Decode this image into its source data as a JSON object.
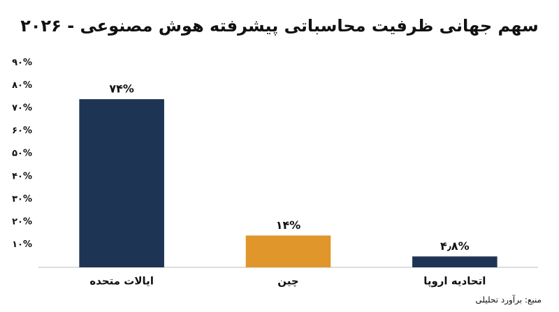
{
  "chart_data": {
    "type": "bar",
    "title": "سهم جهانی ظرفیت محاسباتی پیشرفته هوش مصنوعی - ۲۰۲۶",
    "categories": [
      "ایالات متحده",
      "چین",
      "اتحادیه اروپا"
    ],
    "values": [
      74,
      14,
      4.8
    ],
    "value_labels": [
      "۷۴%",
      "۱۴%",
      "۴٫۸%"
    ],
    "colors": [
      "#1e3454",
      "#e0962a",
      "#1e3454"
    ],
    "ylim": [
      0,
      90
    ],
    "yticks": [
      {
        "value": 10,
        "label": "۱۰%"
      },
      {
        "value": 20,
        "label": "۲۰%"
      },
      {
        "value": 30,
        "label": "۳۰%"
      },
      {
        "value": 40,
        "label": "۴۰%"
      },
      {
        "value": 50,
        "label": "۵۰%"
      },
      {
        "value": 60,
        "label": "۶۰%"
      },
      {
        "value": 70,
        "label": "۷۰%"
      },
      {
        "value": 80,
        "label": "۸۰%"
      },
      {
        "value": 90,
        "label": "۹۰%"
      }
    ],
    "grid": false,
    "source": "منبع: برآورد تحلیلی"
  }
}
